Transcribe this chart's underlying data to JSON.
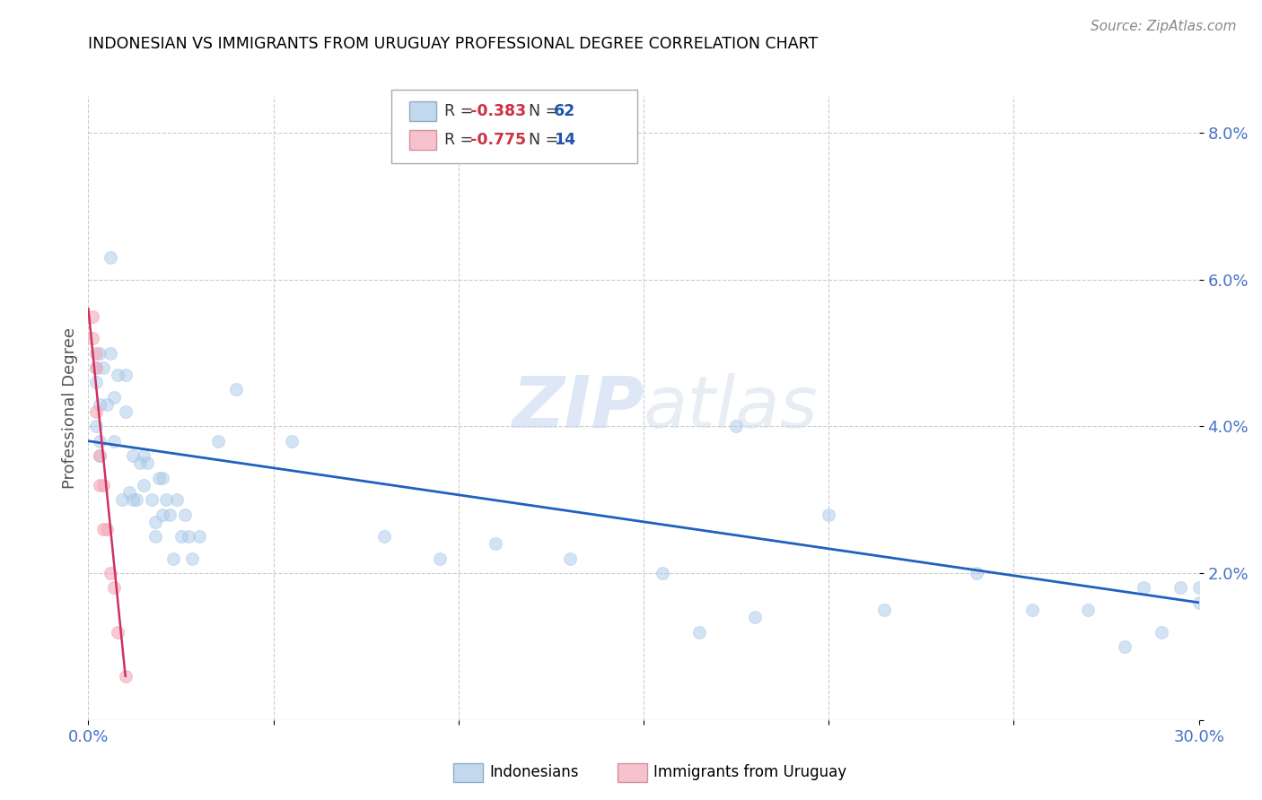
{
  "title": "INDONESIAN VS IMMIGRANTS FROM URUGUAY PROFESSIONAL DEGREE CORRELATION CHART",
  "source": "Source: ZipAtlas.com",
  "ylabel": "Professional Degree",
  "xlim": [
    0.0,
    0.3
  ],
  "ylim": [
    0.0,
    0.085
  ],
  "xticks": [
    0.0,
    0.05,
    0.1,
    0.15,
    0.2,
    0.25,
    0.3
  ],
  "yticks": [
    0.0,
    0.02,
    0.04,
    0.06,
    0.08
  ],
  "legend_r1": "-0.383",
  "legend_n1": "62",
  "legend_r2": "-0.775",
  "legend_n2": "14",
  "blue_color": "#a8c8e8",
  "pink_color": "#f4a8b8",
  "line_blue": "#2060c0",
  "line_pink": "#d03060",
  "indonesians_x": [
    0.002,
    0.002,
    0.003,
    0.003,
    0.002,
    0.003,
    0.004,
    0.003,
    0.005,
    0.006,
    0.006,
    0.007,
    0.007,
    0.008,
    0.009,
    0.01,
    0.01,
    0.011,
    0.012,
    0.012,
    0.013,
    0.014,
    0.015,
    0.015,
    0.016,
    0.017,
    0.018,
    0.018,
    0.019,
    0.02,
    0.02,
    0.021,
    0.022,
    0.023,
    0.024,
    0.025,
    0.026,
    0.027,
    0.028,
    0.03,
    0.035,
    0.04,
    0.055,
    0.08,
    0.095,
    0.11,
    0.13,
    0.155,
    0.165,
    0.18,
    0.2,
    0.215,
    0.24,
    0.255,
    0.27,
    0.28,
    0.285,
    0.29,
    0.295,
    0.3,
    0.3,
    0.175
  ],
  "indonesians_y": [
    0.048,
    0.046,
    0.05,
    0.043,
    0.04,
    0.038,
    0.048,
    0.036,
    0.043,
    0.063,
    0.05,
    0.044,
    0.038,
    0.047,
    0.03,
    0.047,
    0.042,
    0.031,
    0.036,
    0.03,
    0.03,
    0.035,
    0.036,
    0.032,
    0.035,
    0.03,
    0.027,
    0.025,
    0.033,
    0.028,
    0.033,
    0.03,
    0.028,
    0.022,
    0.03,
    0.025,
    0.028,
    0.025,
    0.022,
    0.025,
    0.038,
    0.045,
    0.038,
    0.025,
    0.022,
    0.024,
    0.022,
    0.02,
    0.012,
    0.014,
    0.028,
    0.015,
    0.02,
    0.015,
    0.015,
    0.01,
    0.018,
    0.012,
    0.018,
    0.016,
    0.018,
    0.04
  ],
  "uruguay_x": [
    0.001,
    0.001,
    0.002,
    0.002,
    0.002,
    0.003,
    0.003,
    0.004,
    0.004,
    0.005,
    0.006,
    0.007,
    0.008,
    0.01
  ],
  "uruguay_y": [
    0.055,
    0.052,
    0.05,
    0.048,
    0.042,
    0.036,
    0.032,
    0.032,
    0.026,
    0.026,
    0.02,
    0.018,
    0.012,
    0.006
  ],
  "blue_fit_x": [
    0.0,
    0.3
  ],
  "blue_fit_y": [
    0.038,
    0.016
  ],
  "pink_fit_x": [
    0.0,
    0.01
  ],
  "pink_fit_y": [
    0.056,
    0.006
  ],
  "watermark_zip": "ZIP",
  "watermark_atlas": "atlas"
}
